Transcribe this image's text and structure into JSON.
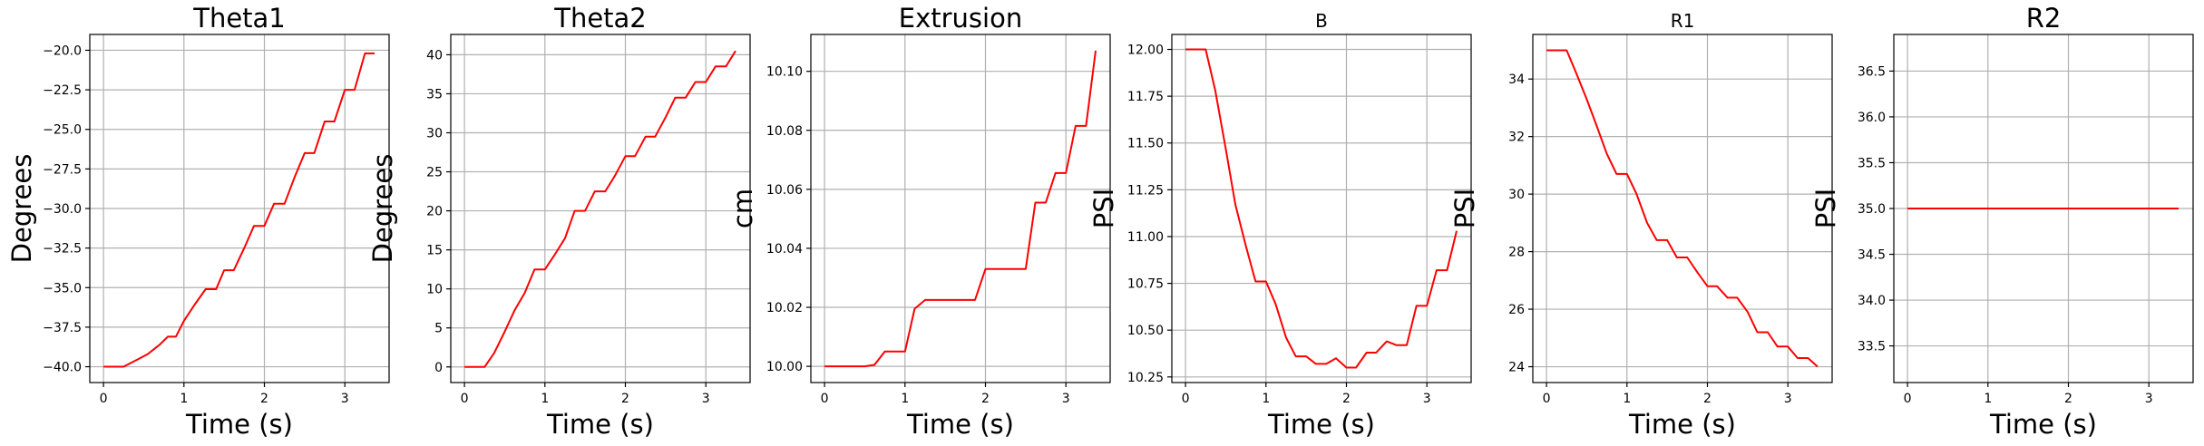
{
  "figure": {
    "panel_count": 6
  },
  "chart_data": [
    {
      "type": "line",
      "title": "Theta1",
      "xlabel": "Time (s)",
      "ylabel": "Degrees",
      "xlim": [
        -0.17,
        3.55
      ],
      "ylim": [
        -41.0,
        -19.0
      ],
      "xticks": [
        0,
        1,
        2,
        3
      ],
      "yticks": [
        -40.0,
        -37.5,
        -35.0,
        -32.5,
        -30.0,
        -27.5,
        -25.0,
        -22.5,
        -20.0
      ],
      "ytick_labels": [
        "−40.0",
        "−37.5",
        "−35.0",
        "−32.5",
        "−30.0",
        "−27.5",
        "−25.0",
        "−22.5",
        "−20.0"
      ],
      "grid": true,
      "series": [
        {
          "color": "#ff0000",
          "x": [
            0.0,
            0.1,
            0.25,
            0.4,
            0.55,
            0.7,
            0.8,
            0.9,
            1.0,
            1.13,
            1.27,
            1.4,
            1.5,
            1.62,
            1.75,
            1.87,
            2.0,
            2.12,
            2.25,
            2.37,
            2.5,
            2.62,
            2.75,
            2.87,
            3.0,
            3.12,
            3.25,
            3.37
          ],
          "y": [
            -40.0,
            -40.0,
            -40.0,
            -39.6,
            -39.2,
            -38.6,
            -38.1,
            -38.1,
            -37.1,
            -36.1,
            -35.1,
            -35.1,
            -33.9,
            -33.9,
            -32.5,
            -31.1,
            -31.1,
            -29.7,
            -29.7,
            -28.1,
            -26.5,
            -26.5,
            -24.5,
            -24.5,
            -22.5,
            -22.5,
            -20.2,
            -20.2
          ]
        }
      ]
    },
    {
      "type": "line",
      "title": "Theta2",
      "xlabel": "Time (s)",
      "ylabel": "Degrees",
      "xlim": [
        -0.17,
        3.55
      ],
      "ylim": [
        -2.0,
        42.6
      ],
      "xticks": [
        0,
        1,
        2,
        3
      ],
      "yticks": [
        0,
        5,
        10,
        15,
        20,
        25,
        30,
        35,
        40
      ],
      "ytick_labels": [
        "0",
        "5",
        "10",
        "15",
        "20",
        "25",
        "30",
        "35",
        "40"
      ],
      "grid": true,
      "series": [
        {
          "color": "#ff0000",
          "x": [
            0.0,
            0.25,
            0.37,
            0.5,
            0.62,
            0.75,
            0.87,
            1.0,
            1.13,
            1.25,
            1.37,
            1.5,
            1.62,
            1.75,
            1.87,
            2.0,
            2.12,
            2.25,
            2.37,
            2.5,
            2.62,
            2.75,
            2.87,
            3.0,
            3.12,
            3.25,
            3.37
          ],
          "y": [
            0.0,
            0.0,
            1.8,
            4.5,
            7.2,
            9.5,
            12.5,
            12.5,
            14.5,
            16.5,
            20.0,
            20.0,
            22.5,
            22.5,
            24.5,
            27.0,
            27.0,
            29.5,
            29.5,
            32.0,
            34.5,
            34.5,
            36.5,
            36.5,
            38.5,
            38.5,
            40.5
          ]
        }
      ]
    },
    {
      "type": "line",
      "title": "Extrusion",
      "xlabel": "Time (s)",
      "ylabel": "cm",
      "xlim": [
        -0.17,
        3.55
      ],
      "ylim": [
        9.9945,
        10.1125
      ],
      "xticks": [
        0,
        1,
        2,
        3
      ],
      "yticks": [
        10.0,
        10.02,
        10.04,
        10.06,
        10.08,
        10.1
      ],
      "ytick_labels": [
        "10.00",
        "10.02",
        "10.04",
        "10.06",
        "10.08",
        "10.10"
      ],
      "grid": true,
      "series": [
        {
          "color": "#ff0000",
          "x": [
            0.0,
            0.25,
            0.5,
            0.62,
            0.75,
            1.0,
            1.12,
            1.25,
            1.37,
            1.5,
            1.75,
            1.87,
            2.0,
            2.25,
            2.5,
            2.62,
            2.75,
            2.87,
            3.0,
            3.12,
            3.25,
            3.37
          ],
          "y": [
            10.0,
            10.0,
            10.0,
            10.0005,
            10.005,
            10.005,
            10.0195,
            10.0225,
            10.0225,
            10.0225,
            10.0225,
            10.0225,
            10.033,
            10.033,
            10.033,
            10.0555,
            10.0555,
            10.0655,
            10.0655,
            10.0815,
            10.0815,
            10.107
          ]
        }
      ]
    },
    {
      "type": "line",
      "title": "B",
      "xlabel": "Time (s)",
      "ylabel": "PSI",
      "xlim": [
        -0.17,
        3.55
      ],
      "ylim": [
        10.22,
        12.08
      ],
      "xticks": [
        0,
        1,
        2,
        3
      ],
      "yticks": [
        10.25,
        10.5,
        10.75,
        11.0,
        11.25,
        11.5,
        11.75,
        12.0
      ],
      "ytick_labels": [
        "10.25",
        "10.50",
        "10.75",
        "11.00",
        "11.25",
        "11.50",
        "11.75",
        "12.00"
      ],
      "grid": true,
      "series": [
        {
          "color": "#ff0000",
          "x": [
            0.0,
            0.12,
            0.25,
            0.37,
            0.5,
            0.62,
            0.75,
            0.87,
            1.0,
            1.12,
            1.25,
            1.37,
            1.5,
            1.62,
            1.75,
            1.87,
            2.0,
            2.12,
            2.25,
            2.37,
            2.5,
            2.62,
            2.75,
            2.87,
            3.0,
            3.12,
            3.25,
            3.37
          ],
          "y": [
            12.0,
            12.0,
            12.0,
            11.78,
            11.47,
            11.17,
            10.95,
            10.76,
            10.76,
            10.64,
            10.46,
            10.36,
            10.36,
            10.32,
            10.32,
            10.35,
            10.3,
            10.3,
            10.38,
            10.38,
            10.44,
            10.42,
            10.42,
            10.63,
            10.63,
            10.82,
            10.82,
            11.03
          ]
        }
      ]
    },
    {
      "type": "line",
      "title": "R1",
      "xlabel": "Time (s)",
      "ylabel": "PSI",
      "xlim": [
        -0.17,
        3.55
      ],
      "ylim": [
        23.45,
        35.55
      ],
      "xticks": [
        0,
        1,
        2,
        3
      ],
      "yticks": [
        24,
        26,
        28,
        30,
        32,
        34
      ],
      "ytick_labels": [
        "24",
        "26",
        "28",
        "30",
        "32",
        "34"
      ],
      "grid": true,
      "series": [
        {
          "color": "#ff0000",
          "x": [
            0.0,
            0.12,
            0.25,
            0.37,
            0.5,
            0.62,
            0.75,
            0.87,
            1.0,
            1.12,
            1.25,
            1.37,
            1.5,
            1.62,
            1.75,
            1.87,
            2.0,
            2.12,
            2.25,
            2.37,
            2.5,
            2.62,
            2.75,
            2.87,
            3.0,
            3.12,
            3.25,
            3.37
          ],
          "y": [
            35.0,
            35.0,
            35.0,
            34.2,
            33.3,
            32.4,
            31.4,
            30.7,
            30.7,
            30.0,
            29.0,
            28.4,
            28.4,
            27.8,
            27.8,
            27.3,
            26.8,
            26.8,
            26.4,
            26.4,
            25.9,
            25.2,
            25.2,
            24.7,
            24.7,
            24.3,
            24.3,
            24.0
          ]
        }
      ]
    },
    {
      "type": "line",
      "title": "R2",
      "xlabel": "Time (s)",
      "ylabel": "PSI",
      "xlim": [
        -0.17,
        3.55
      ],
      "ylim": [
        33.1,
        36.9
      ],
      "xticks": [
        0,
        1,
        2,
        3
      ],
      "yticks": [
        33.5,
        34.0,
        34.5,
        35.0,
        35.5,
        36.0,
        36.5
      ],
      "ytick_labels": [
        "33.5",
        "34.0",
        "34.5",
        "35.0",
        "35.5",
        "36.0",
        "36.5"
      ],
      "grid": true,
      "series": [
        {
          "color": "#ff0000",
          "x": [
            0.0,
            3.37
          ],
          "y": [
            35.0,
            35.0
          ]
        }
      ]
    }
  ]
}
